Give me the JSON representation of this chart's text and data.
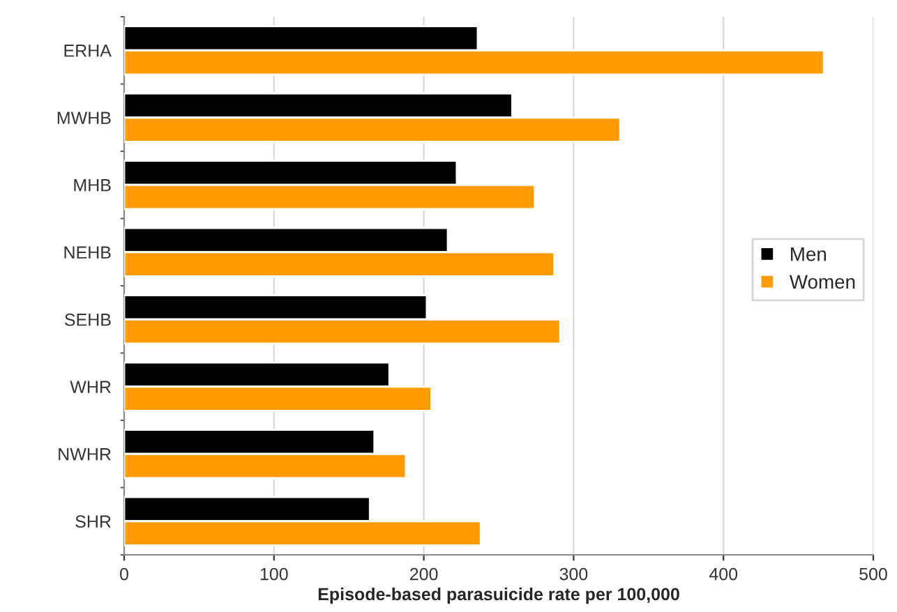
{
  "chart_data": {
    "type": "bar",
    "orientation": "horizontal",
    "xlabel": "Episode-based parasuicide rate per 100,000",
    "categories": [
      "ERHA",
      "MWHB",
      "MHB",
      "NEHB",
      "SEHB",
      "WHR",
      "NWHR",
      "SHR"
    ],
    "series": [
      {
        "name": "Men",
        "color": "#000000",
        "values": [
          236,
          259,
          222,
          216,
          202,
          177,
          167,
          164
        ]
      },
      {
        "name": "Women",
        "color": "#ff9a00",
        "values": [
          467,
          331,
          274,
          287,
          291,
          205,
          188,
          238
        ]
      }
    ],
    "xlim": [
      0,
      500
    ],
    "xticks": [
      0,
      100,
      200,
      300,
      400,
      500
    ],
    "grid": "x",
    "legend": "right"
  }
}
